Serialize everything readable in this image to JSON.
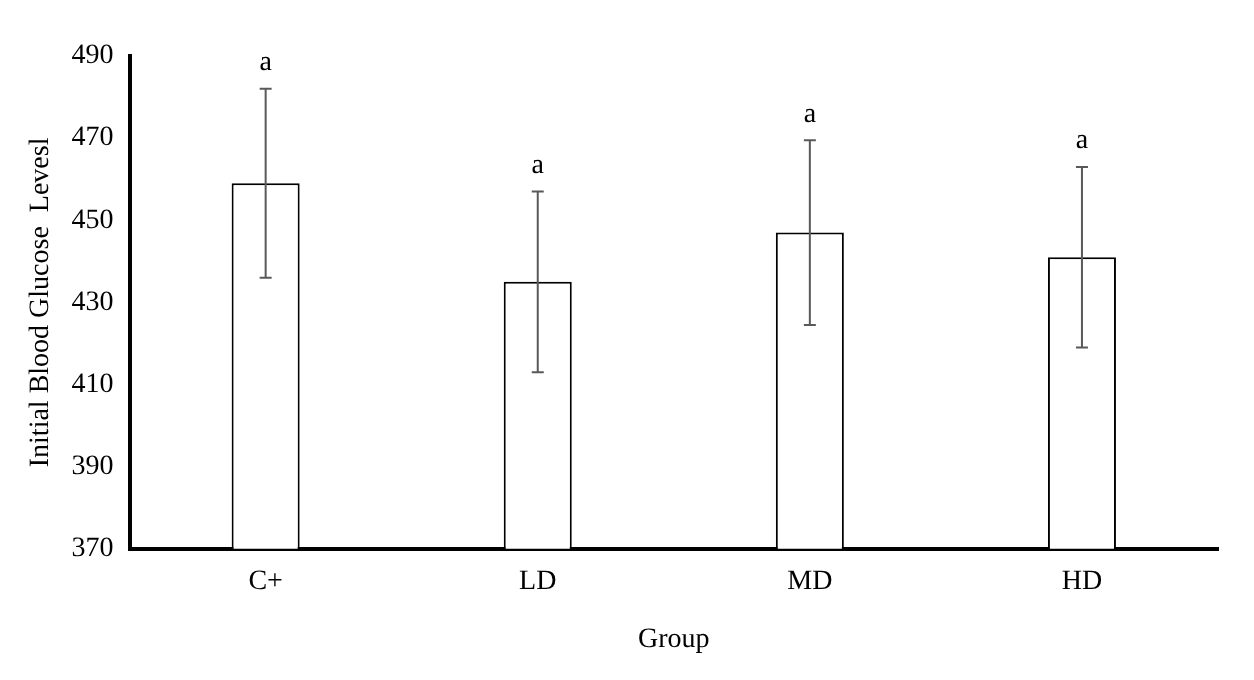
{
  "chart_data": {
    "type": "bar",
    "xlabel": "Group",
    "ylabel": "Initial Blood Glucose  Levesl",
    "categories": [
      "C+",
      "LD",
      "MD",
      "HD"
    ],
    "values": [
      459,
      435,
      447,
      441
    ],
    "errors": [
      23,
      22,
      22.5,
      22
    ],
    "color": "#000000",
    "ylim": [
      370,
      490
    ],
    "yticks": [
      370,
      390,
      410,
      430,
      450,
      470,
      490
    ],
    "grid": false,
    "legend": false,
    "annotations": [
      {
        "text": "a",
        "x": "C+",
        "y": 482
      },
      {
        "text": "a",
        "x": "LD",
        "y": 457
      },
      {
        "text": "a",
        "x": "MD",
        "y": 469.5
      },
      {
        "text": "a",
        "x": "HD",
        "y": 463
      }
    ]
  }
}
